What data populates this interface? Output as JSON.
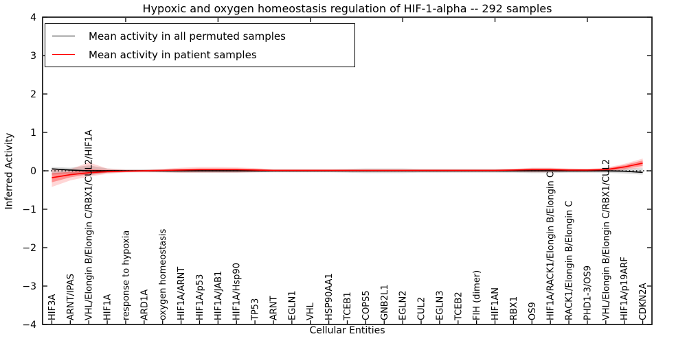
{
  "chart_data": {
    "type": "line",
    "title": "Hypoxic and oxygen homeostasis regulation of HIF-1-alpha -- 292 samples",
    "xlabel": "Cellular Entities",
    "ylabel": "Inferred Activity",
    "ylim": [
      -4,
      4
    ],
    "yticks": [
      4,
      3,
      2,
      1,
      0,
      -1,
      -2,
      -3,
      -4
    ],
    "ytick_labels": [
      "4",
      "3",
      "2",
      "1",
      "0",
      "−1",
      "−2",
      "−3",
      "−4"
    ],
    "grid": false,
    "legend_position": "upper left",
    "top_tick_indices": [
      4,
      9,
      14,
      19,
      24,
      29
    ],
    "zero_line": {
      "style": "dotted",
      "color": "#000000",
      "y": 0
    },
    "categories": [
      "HIF3A",
      "ARNT/IPAS",
      "VHL/Elongin B/Elongin C/RBX1/CUL2/HIF1A",
      "HIF1A",
      "response to hypoxia",
      "ARD1A",
      "oxygen homeostasis",
      "HIF1A/ARNT",
      "HIF1A/p53",
      "HIF1A/JAB1",
      "HIF1A/Hsp90",
      "TP53",
      "ARNT",
      "EGLN1",
      "VHL",
      "HSP90AA1",
      "TCEB1",
      "COPS5",
      "GNB2L1",
      "EGLN2",
      "CUL2",
      "EGLN3",
      "TCEB2",
      "FIH (dimer)",
      "HIF1AN",
      "RBX1",
      "OS9",
      "HIF1A/RACK1/Elongin B/Elongin C",
      "RACK1/Elongin B/Elongin C",
      "PHD1-3/OS9",
      "VHL/Elongin B/Elongin C/RBX1/CUL2",
      "HIF1A/p19ARF",
      "CDKN2A"
    ],
    "series": [
      {
        "name": "Mean activity in all permuted samples",
        "color": "#000000",
        "values": [
          0.05,
          0.02,
          0.0,
          0.0,
          0.0,
          0.0,
          0.0,
          0.0,
          0.0,
          0.0,
          0.0,
          0.0,
          0.0,
          0.0,
          0.0,
          0.0,
          0.0,
          0.0,
          0.0,
          0.0,
          0.0,
          0.0,
          0.0,
          0.0,
          0.0,
          0.0,
          0.0,
          0.0,
          0.0,
          0.0,
          0.0,
          -0.01,
          -0.04
        ]
      },
      {
        "name": "Mean activity in patient samples",
        "color": "#ff0000",
        "values": [
          -0.18,
          -0.1,
          -0.05,
          -0.02,
          -0.01,
          0.0,
          0.01,
          0.02,
          0.03,
          0.03,
          0.03,
          0.02,
          0.01,
          0.01,
          0.01,
          0.01,
          0.01,
          0.01,
          0.01,
          0.01,
          0.01,
          0.01,
          0.01,
          0.01,
          0.01,
          0.02,
          0.03,
          0.03,
          0.02,
          0.02,
          0.03,
          0.1,
          0.2
        ]
      }
    ],
    "bands": [
      {
        "name": "permuted-confidence-band",
        "color": "#000000",
        "opacity": 0.14,
        "low": [
          -0.1,
          -0.07,
          -0.12,
          -0.05,
          -0.04,
          -0.04,
          -0.04,
          -0.05,
          -0.05,
          -0.05,
          -0.05,
          -0.04,
          -0.04,
          -0.04,
          -0.04,
          -0.04,
          -0.05,
          -0.06,
          -0.06,
          -0.06,
          -0.05,
          -0.05,
          -0.05,
          -0.05,
          -0.05,
          -0.05,
          -0.06,
          -0.06,
          -0.05,
          -0.05,
          -0.05,
          -0.07,
          -0.1
        ],
        "high": [
          0.1,
          0.08,
          0.14,
          0.06,
          0.04,
          0.04,
          0.04,
          0.05,
          0.05,
          0.05,
          0.05,
          0.04,
          0.04,
          0.04,
          0.04,
          0.04,
          0.05,
          0.06,
          0.06,
          0.06,
          0.05,
          0.05,
          0.05,
          0.05,
          0.05,
          0.05,
          0.06,
          0.06,
          0.05,
          0.05,
          0.05,
          0.06,
          0.07
        ]
      },
      {
        "name": "patient-confidence-band-outer",
        "color": "#ff0000",
        "opacity": 0.16,
        "low": [
          -0.42,
          -0.25,
          -0.15,
          -0.08,
          -0.04,
          -0.03,
          -0.04,
          -0.05,
          -0.05,
          -0.05,
          -0.05,
          -0.04,
          -0.03,
          -0.03,
          -0.03,
          -0.03,
          -0.03,
          -0.03,
          -0.03,
          -0.03,
          -0.03,
          -0.03,
          -0.03,
          -0.03,
          -0.03,
          -0.03,
          -0.04,
          -0.04,
          -0.03,
          -0.03,
          -0.02,
          0.02,
          0.08
        ],
        "high": [
          0.03,
          0.04,
          0.22,
          0.06,
          0.03,
          0.03,
          0.05,
          0.08,
          0.1,
          0.1,
          0.09,
          0.07,
          0.04,
          0.04,
          0.04,
          0.04,
          0.04,
          0.04,
          0.04,
          0.04,
          0.04,
          0.04,
          0.04,
          0.04,
          0.04,
          0.05,
          0.08,
          0.08,
          0.06,
          0.05,
          0.08,
          0.18,
          0.32
        ]
      },
      {
        "name": "patient-confidence-band-inner",
        "color": "#ff0000",
        "opacity": 0.32,
        "low": [
          -0.3,
          -0.17,
          -0.09,
          -0.05,
          -0.03,
          -0.02,
          -0.02,
          -0.02,
          -0.02,
          -0.02,
          -0.02,
          -0.02,
          -0.01,
          -0.01,
          -0.01,
          -0.01,
          -0.01,
          -0.01,
          -0.01,
          -0.01,
          -0.01,
          -0.01,
          -0.01,
          -0.01,
          -0.01,
          -0.01,
          -0.01,
          -0.01,
          -0.01,
          -0.01,
          0.0,
          0.05,
          0.13
        ],
        "high": [
          -0.06,
          -0.03,
          0.04,
          0.02,
          0.01,
          0.02,
          0.03,
          0.05,
          0.06,
          0.06,
          0.06,
          0.05,
          0.03,
          0.03,
          0.03,
          0.03,
          0.03,
          0.03,
          0.03,
          0.03,
          0.03,
          0.03,
          0.03,
          0.03,
          0.03,
          0.04,
          0.06,
          0.06,
          0.04,
          0.04,
          0.06,
          0.15,
          0.27
        ]
      }
    ]
  }
}
